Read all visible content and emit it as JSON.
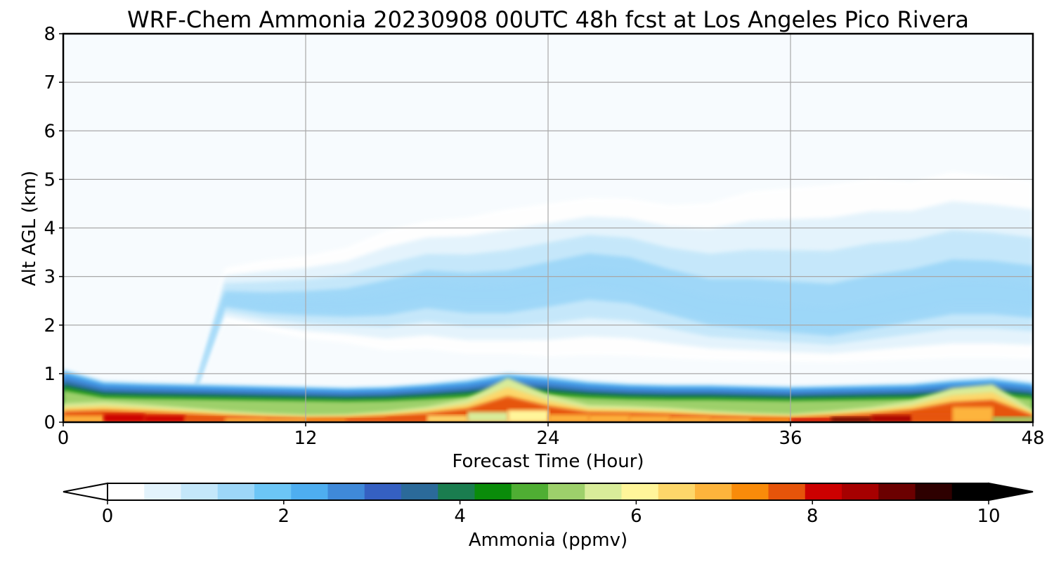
{
  "chart_data": {
    "type": "heatmap",
    "title": "WRF-Chem Ammonia  20230908 00UTC 48h fcst at Los Angeles Pico Rivera",
    "xlabel": "Forecast Time (Hour)",
    "ylabel": "Alt AGL (km)",
    "xlim": [
      0,
      48
    ],
    "ylim": [
      0,
      8
    ],
    "x_ticks": [
      "0",
      "12",
      "24",
      "36",
      "48"
    ],
    "x_tick_values": [
      0,
      12,
      24,
      36,
      48
    ],
    "y_ticks": [
      "0",
      "1",
      "2",
      "3",
      "4",
      "5",
      "6",
      "7",
      "8"
    ],
    "y_tick_values": [
      0,
      1,
      2,
      3,
      4,
      5,
      6,
      7,
      8
    ],
    "grid": true,
    "colorbar": {
      "label": "Ammonia  (ppmv)",
      "min": 0,
      "max": 10,
      "ticks": [
        "0",
        "2",
        "4",
        "6",
        "8",
        "10"
      ],
      "tick_values": [
        0,
        2,
        4,
        6,
        8,
        10
      ],
      "extend": "both",
      "colors": [
        "#ffffff",
        "#e3f3fc",
        "#c4e7fa",
        "#9dd7f8",
        "#6cc6f6",
        "#4eaef0",
        "#3f89d9",
        "#3560c2",
        "#2b6a9a",
        "#1a7d4f",
        "#0a8c0a",
        "#4fae33",
        "#9dd06b",
        "#d8ec9a",
        "#fff59a",
        "#fdd76a",
        "#fdb43c",
        "#f98b0a",
        "#e6540a",
        "#cc0000",
        "#a60000",
        "#6b0000",
        "#2e0000",
        "#000000"
      ],
      "under_color": "#ffffff",
      "over_color": "#000000"
    },
    "hours": [
      0,
      2,
      4,
      6,
      8,
      10,
      12,
      14,
      16,
      18,
      20,
      22,
      24,
      26,
      28,
      30,
      32,
      34,
      36,
      38,
      40,
      42,
      44,
      46,
      48
    ],
    "upper_layer": {
      "description_units": "km",
      "top": [
        0.0,
        0.0,
        0.0,
        0.0,
        3.3,
        3.5,
        3.6,
        3.8,
        4.2,
        4.4,
        4.5,
        4.7,
        4.8,
        4.9,
        4.9,
        4.8,
        4.9,
        5.2,
        5.3,
        5.4,
        5.5,
        5.4,
        5.6,
        5.5,
        5.4
      ],
      "bottom": [
        0.0,
        0.0,
        0.0,
        0.0,
        2.0,
        1.8,
        1.6,
        1.5,
        1.3,
        1.3,
        1.2,
        1.2,
        1.1,
        1.1,
        1.1,
        1.1,
        1.1,
        1.1,
        1.1,
        1.1,
        1.1,
        1.1,
        1.1,
        1.1,
        1.1
      ],
      "core": [
        0.0,
        0.0,
        0.0,
        0.0,
        2.5,
        2.4,
        2.4,
        2.4,
        2.5,
        2.7,
        2.6,
        2.6,
        2.8,
        3.0,
        2.9,
        2.6,
        2.3,
        2.2,
        2.1,
        2.0,
        2.2,
        2.4,
        2.6,
        2.6,
        2.5
      ],
      "peak_ppmv": [
        0.0,
        0.0,
        0.0,
        0.0,
        0.4,
        0.6,
        0.8,
        0.9,
        0.9,
        0.9,
        0.8,
        1.0,
        1.3,
        1.5,
        1.6,
        1.7,
        1.7,
        1.6,
        1.6,
        1.6,
        1.5,
        1.4,
        1.6,
        1.5,
        1.2
      ]
    },
    "boundary_layer": {
      "description_units": "km",
      "depth": [
        1.1,
        0.85,
        0.82,
        0.8,
        0.78,
        0.76,
        0.74,
        0.72,
        0.74,
        0.8,
        0.88,
        1.02,
        0.95,
        0.85,
        0.8,
        0.78,
        0.78,
        0.76,
        0.74,
        0.76,
        0.78,
        0.8,
        0.88,
        0.92,
        0.82
      ],
      "surface_ppmv": [
        6.0,
        8.0,
        8.2,
        7.8,
        7.2,
        6.8,
        6.8,
        7.4,
        8.2,
        7.0,
        6.0,
        5.6,
        6.2,
        7.2,
        6.8,
        6.8,
        6.6,
        6.8,
        7.6,
        8.6,
        9.0,
        8.2,
        7.2,
        6.4,
        4.2
      ],
      "warm_fraction": [
        0.35,
        0.5,
        0.45,
        0.38,
        0.3,
        0.24,
        0.2,
        0.22,
        0.3,
        0.4,
        0.55,
        0.9,
        0.6,
        0.42,
        0.42,
        0.38,
        0.3,
        0.25,
        0.22,
        0.3,
        0.4,
        0.55,
        0.8,
        0.85,
        0.3
      ]
    }
  }
}
